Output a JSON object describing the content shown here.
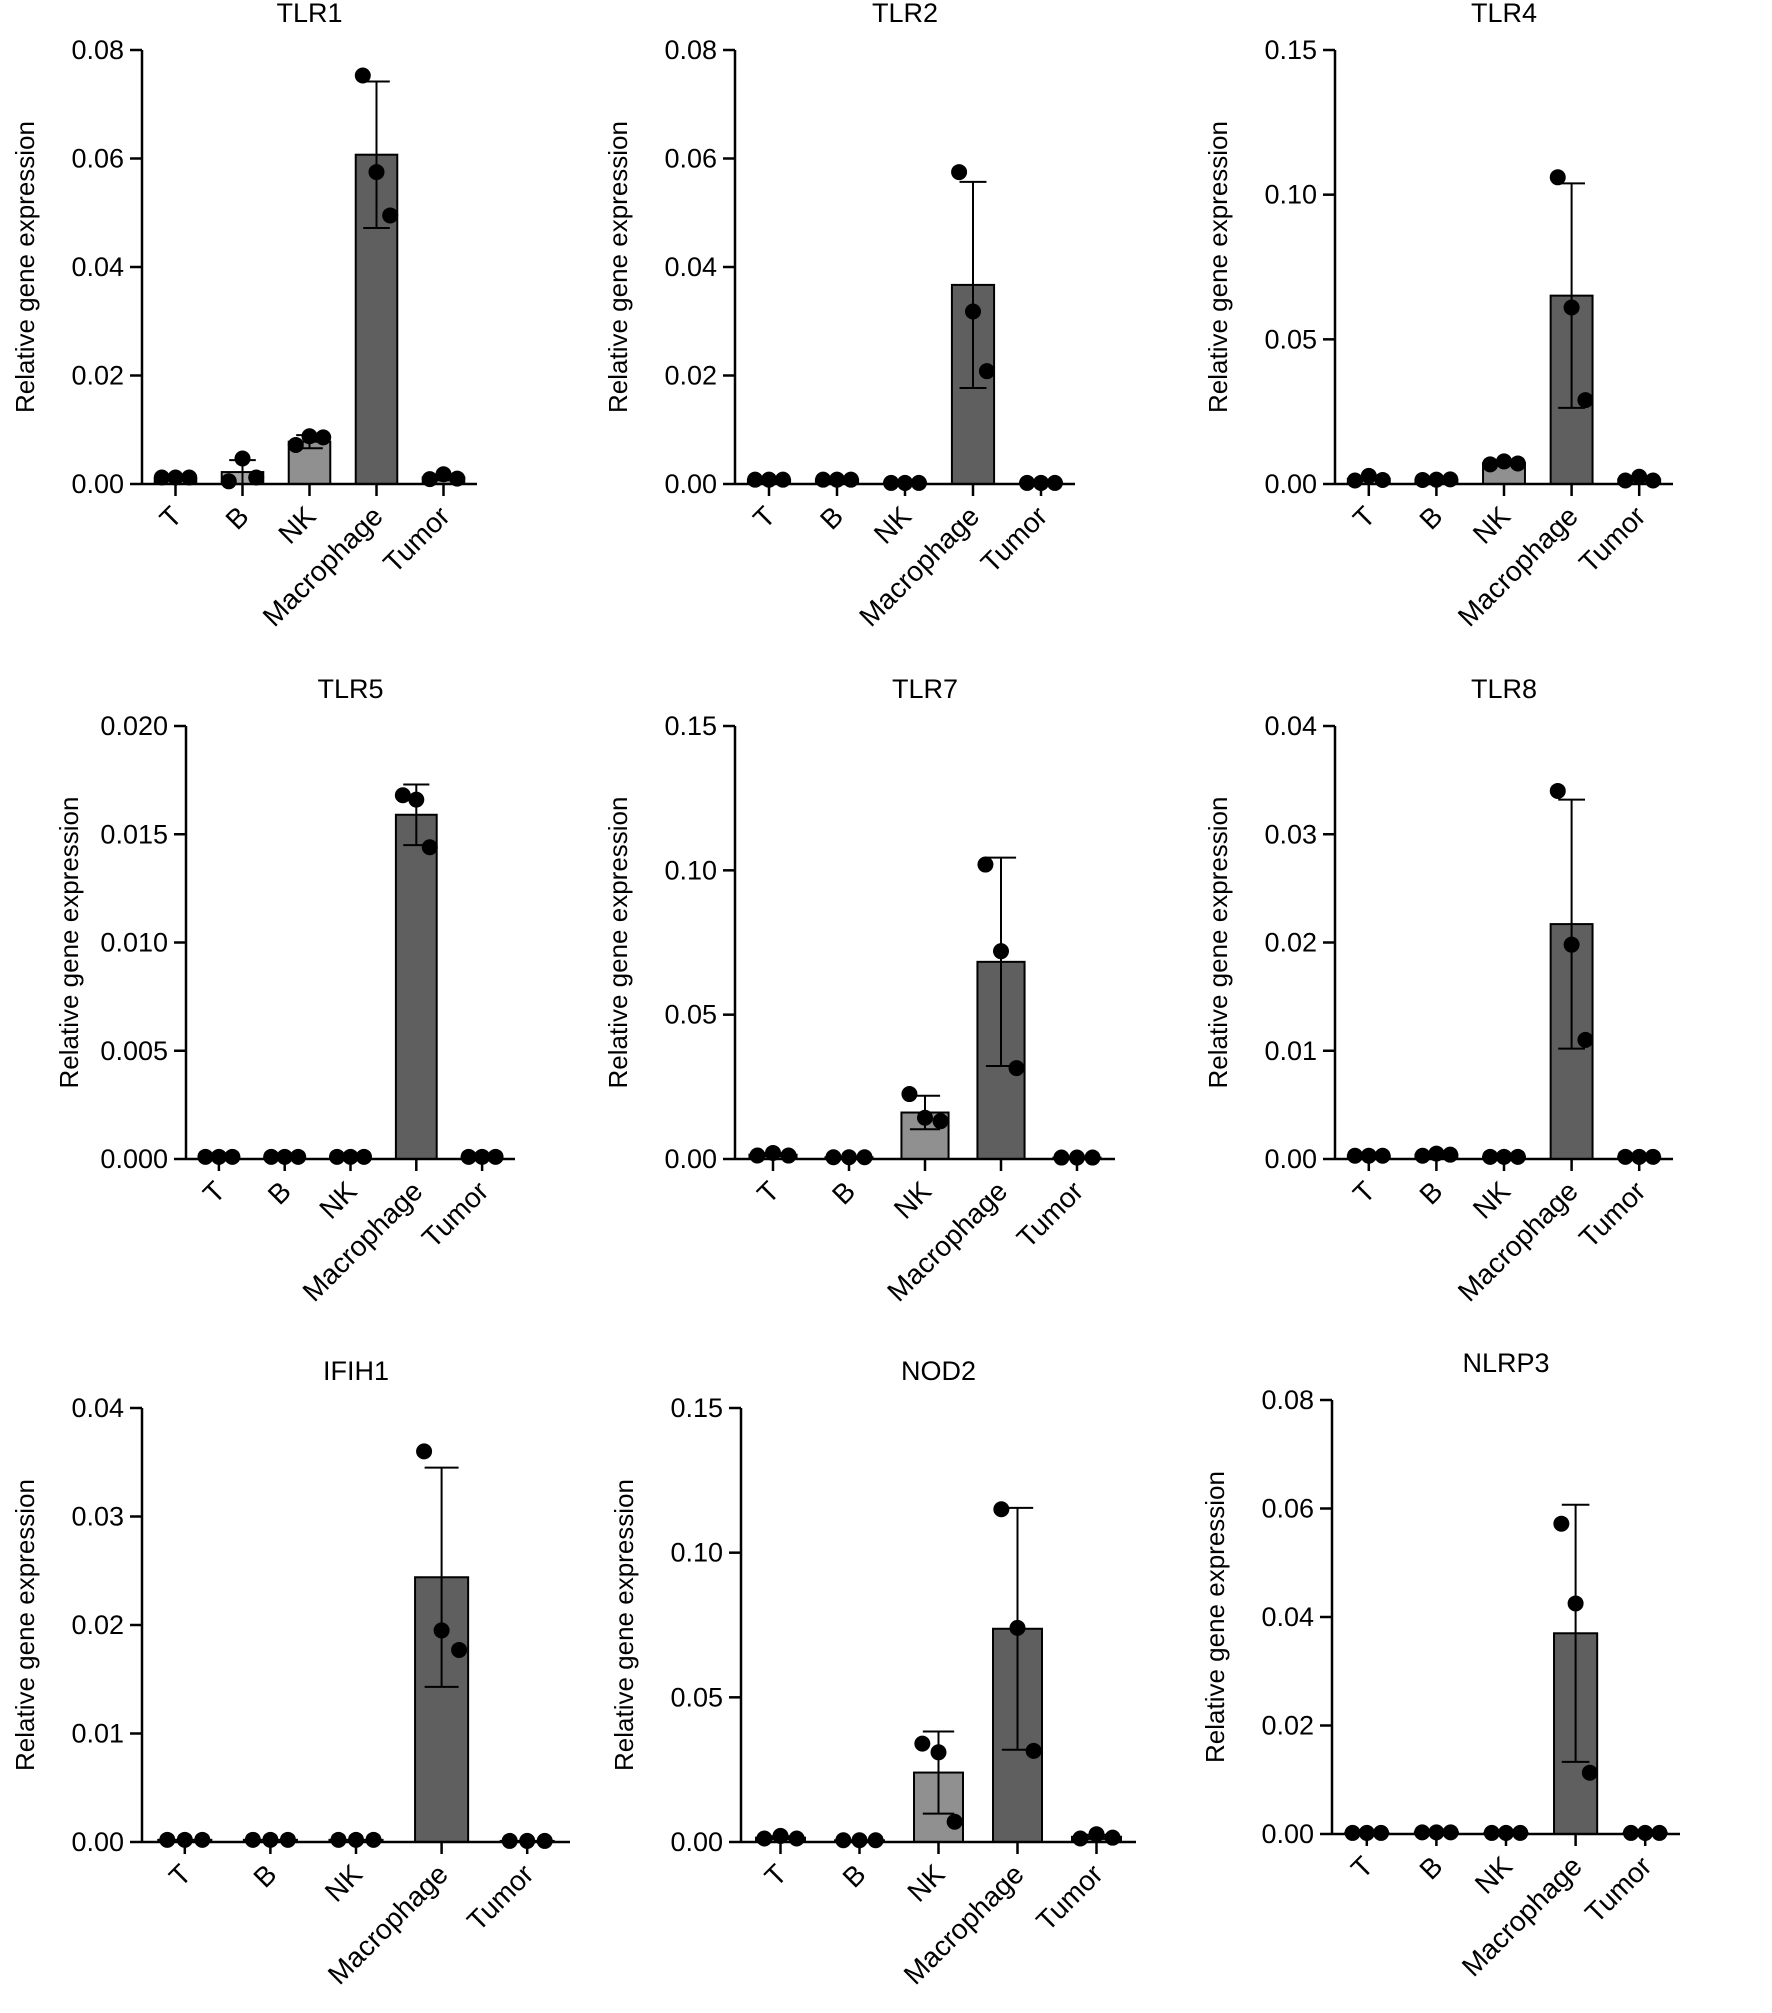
{
  "figure": {
    "colors": {
      "bar_dark": "#5f5f5f",
      "bar_light": "#909090",
      "bar_lighter": "#a6a6a6",
      "point": "#000000",
      "axis": "#000000"
    }
  },
  "chart_data": [
    {
      "type": "bar",
      "title": "TLR1",
      "ylabel": "Relative gene expression",
      "categories": [
        "T",
        "B",
        "NK",
        "Macrophage",
        "Tumor"
      ],
      "ylim": [
        0,
        0.08
      ],
      "yticks": [
        0,
        0.02,
        0.04,
        0.06,
        0.08
      ],
      "ytick_labels": [
        "0.00",
        "0.02",
        "0.04",
        "0.06",
        "0.08"
      ],
      "means": [
        0.001,
        0.0022,
        0.0078,
        0.0607,
        0.0012
      ],
      "sd": [
        0.0002,
        0.0022,
        0.0012,
        0.0135,
        0.0005
      ],
      "points": [
        [
          0.0012,
          0.0012,
          0.0012
        ],
        [
          0.0005,
          0.0047,
          0.0012
        ],
        [
          0.0072,
          0.0088,
          0.0086
        ],
        [
          0.0753,
          0.0575,
          0.0495
        ],
        [
          0.0009,
          0.0018,
          0.001
        ]
      ]
    },
    {
      "type": "bar",
      "title": "TLR2",
      "ylabel": "Relative gene expression",
      "categories": [
        "T",
        "B",
        "NK",
        "Macrophage",
        "Tumor"
      ],
      "ylim": [
        0,
        0.08
      ],
      "yticks": [
        0,
        0.02,
        0.04,
        0.06,
        0.08
      ],
      "ytick_labels": [
        "0.00",
        "0.02",
        "0.04",
        "0.06",
        "0.08"
      ],
      "means": [
        0.0008,
        0.0008,
        0.0002,
        0.0367,
        0.0002
      ],
      "sd": [
        0.0002,
        0.0002,
        0.0001,
        0.019,
        0.0001
      ],
      "points": [
        [
          0.0008,
          0.0008,
          0.0008
        ],
        [
          0.0008,
          0.0008,
          0.0008
        ],
        [
          0.0002,
          0.0002,
          0.0002
        ],
        [
          0.0575,
          0.0318,
          0.0208
        ],
        [
          0.0002,
          0.0002,
          0.0002
        ]
      ]
    },
    {
      "type": "bar",
      "title": "TLR4",
      "ylabel": "Relative gene expression",
      "categories": [
        "T",
        "B",
        "NK",
        "Macrophage",
        "Tumor"
      ],
      "ylim": [
        0,
        0.15
      ],
      "yticks": [
        0,
        0.05,
        0.1,
        0.15
      ],
      "ytick_labels": [
        "0.00",
        "0.05",
        "0.10",
        "0.15"
      ],
      "means": [
        0.0018,
        0.0015,
        0.0072,
        0.0651,
        0.0016
      ],
      "sd": [
        0.0005,
        0.0002,
        0.0005,
        0.0388,
        0.0006
      ],
      "points": [
        [
          0.0012,
          0.0028,
          0.0014
        ],
        [
          0.0014,
          0.0015,
          0.0016
        ],
        [
          0.0068,
          0.0078,
          0.0071
        ],
        [
          0.106,
          0.061,
          0.029
        ],
        [
          0.0012,
          0.0025,
          0.0012
        ]
      ]
    },
    {
      "type": "bar",
      "title": "TLR5",
      "ylabel": "Relative gene expression",
      "categories": [
        "T",
        "B",
        "NK",
        "Macrophage",
        "Tumor"
      ],
      "ylim": [
        0,
        0.02
      ],
      "yticks": [
        0,
        0.005,
        0.01,
        0.015,
        0.02
      ],
      "ytick_labels": [
        "0.000",
        "0.005",
        "0.010",
        "0.015",
        "0.020"
      ],
      "means": [
        0.0001,
        0.0001,
        0.0001,
        0.0159,
        0.0001
      ],
      "sd": [
        2e-05,
        2e-05,
        2e-05,
        0.0014,
        2e-05
      ],
      "points": [
        [
          0.0001,
          0.0001,
          0.0001
        ],
        [
          0.0001,
          0.0001,
          0.0001
        ],
        [
          0.0001,
          0.0001,
          0.0001
        ],
        [
          0.0168,
          0.0166,
          0.0144
        ],
        [
          0.0001,
          0.0001,
          0.0001
        ]
      ]
    },
    {
      "type": "bar",
      "title": "TLR7",
      "ylabel": "Relative gene expression",
      "categories": [
        "T",
        "B",
        "NK",
        "Macrophage",
        "Tumor"
      ],
      "ylim": [
        0,
        0.15
      ],
      "yticks": [
        0,
        0.05,
        0.1,
        0.15
      ],
      "ytick_labels": [
        "0.00",
        "0.05",
        "0.10",
        "0.15"
      ],
      "means": [
        0.0015,
        0.0006,
        0.0161,
        0.0683,
        0.0005
      ],
      "sd": [
        0.0005,
        0.0001,
        0.0058,
        0.0361,
        0.0001
      ],
      "points": [
        [
          0.0012,
          0.0021,
          0.0012
        ],
        [
          0.0006,
          0.0006,
          0.0006
        ],
        [
          0.0225,
          0.0143,
          0.0131
        ],
        [
          0.102,
          0.072,
          0.0315
        ],
        [
          0.0005,
          0.0005,
          0.0005
        ]
      ]
    },
    {
      "type": "bar",
      "title": "TLR8",
      "ylabel": "Relative gene expression",
      "categories": [
        "T",
        "B",
        "NK",
        "Macrophage",
        "Tumor"
      ],
      "ylim": [
        0,
        0.04
      ],
      "yticks": [
        0,
        0.01,
        0.02,
        0.03,
        0.04
      ],
      "ytick_labels": [
        "0.00",
        "0.01",
        "0.02",
        "0.03",
        "0.04"
      ],
      "means": [
        0.0003,
        0.0004,
        0.0002,
        0.0217,
        0.0002
      ],
      "sd": [
        5e-05,
        0.0001,
        5e-05,
        0.0115,
        5e-05
      ],
      "points": [
        [
          0.0003,
          0.0003,
          0.0003
        ],
        [
          0.0003,
          0.0005,
          0.0004
        ],
        [
          0.0002,
          0.0002,
          0.0002
        ],
        [
          0.034,
          0.0198,
          0.011
        ],
        [
          0.0002,
          0.0002,
          0.0002
        ]
      ]
    },
    {
      "type": "bar",
      "title": "IFIH1",
      "ylabel": "Relative gene expression",
      "categories": [
        "T",
        "B",
        "NK",
        "Macrophage",
        "Tumor"
      ],
      "ylim": [
        0,
        0.04
      ],
      "yticks": [
        0,
        0.01,
        0.02,
        0.03,
        0.04
      ],
      "ytick_labels": [
        "0.00",
        "0.01",
        "0.02",
        "0.03",
        "0.04"
      ],
      "means": [
        0.0002,
        0.0002,
        0.0002,
        0.0244,
        0.0001
      ],
      "sd": [
        3e-05,
        3e-05,
        3e-05,
        0.0101,
        2e-05
      ],
      "points": [
        [
          0.0002,
          0.0002,
          0.0002
        ],
        [
          0.0002,
          0.0002,
          0.0002
        ],
        [
          0.0002,
          0.0002,
          0.0002
        ],
        [
          0.036,
          0.0195,
          0.0177
        ],
        [
          0.0001,
          0.0001,
          0.0001
        ]
      ]
    },
    {
      "type": "bar",
      "title": "NOD2",
      "ylabel": "Relative gene expression",
      "categories": [
        "T",
        "B",
        "NK",
        "Macrophage",
        "Tumor"
      ],
      "ylim": [
        0,
        0.15
      ],
      "yticks": [
        0,
        0.05,
        0.1,
        0.15
      ],
      "ytick_labels": [
        "0.00",
        "0.05",
        "0.10",
        "0.15"
      ],
      "means": [
        0.0015,
        0.0006,
        0.024,
        0.0737,
        0.0018
      ],
      "sd": [
        0.0005,
        0.0001,
        0.0142,
        0.0418,
        0.0007
      ],
      "points": [
        [
          0.0012,
          0.0021,
          0.0012
        ],
        [
          0.0006,
          0.0006,
          0.0006
        ],
        [
          0.034,
          0.031,
          0.007
        ],
        [
          0.115,
          0.074,
          0.0315
        ],
        [
          0.0012,
          0.0027,
          0.0015
        ]
      ]
    },
    {
      "type": "bar",
      "title": "NLRP3",
      "ylabel": "Relative gene expression",
      "categories": [
        "T",
        "B",
        "NK",
        "Macrophage",
        "Tumor"
      ],
      "ylim": [
        0,
        0.08
      ],
      "yticks": [
        0,
        0.02,
        0.04,
        0.06,
        0.08
      ],
      "ytick_labels": [
        "0.00",
        "0.02",
        "0.04",
        "0.06",
        "0.08"
      ],
      "means": [
        0.0002,
        0.0003,
        0.0002,
        0.037,
        0.0002
      ],
      "sd": [
        3e-05,
        5e-05,
        3e-05,
        0.0237,
        3e-05
      ],
      "points": [
        [
          0.0002,
          0.0002,
          0.0002
        ],
        [
          0.0003,
          0.0003,
          0.0003
        ],
        [
          0.0002,
          0.0002,
          0.0002
        ],
        [
          0.0572,
          0.0425,
          0.0113
        ],
        [
          0.0002,
          0.0002,
          0.0002
        ]
      ]
    }
  ]
}
